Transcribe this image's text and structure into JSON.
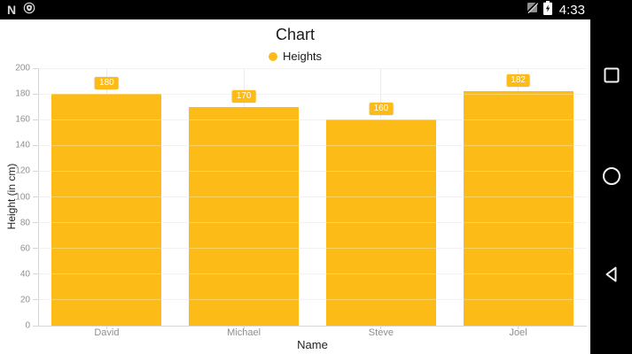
{
  "status_bar": {
    "time": "4:33",
    "left_icons": [
      "android-n-logo",
      "shield-badge"
    ],
    "right_icons": [
      "no-signal",
      "battery-charging"
    ]
  },
  "chart_data": {
    "type": "bar",
    "title": "Chart",
    "categories": [
      "David",
      "Michael",
      "Steve",
      "Joel"
    ],
    "series": [
      {
        "name": "Heights",
        "color": "#fcbb16",
        "values": [
          180,
          170,
          160,
          182
        ]
      }
    ],
    "value_labels": [
      180,
      170,
      160,
      182
    ],
    "xlabel": "Name",
    "ylabel": "Height (in cm)",
    "ylim": [
      0,
      200
    ],
    "ytick_step": 20,
    "yticks": [
      0,
      20,
      40,
      60,
      80,
      100,
      120,
      140,
      160,
      180,
      200
    ],
    "grid": true,
    "legend_position": "top-center"
  },
  "nav_bar": {
    "buttons": [
      {
        "name": "recents",
        "icon": "square-outline"
      },
      {
        "name": "home",
        "icon": "circle-outline"
      },
      {
        "name": "back",
        "icon": "triangle-left-outline"
      }
    ]
  },
  "colors": {
    "bar": "#fcbb16",
    "chrome_bg": "#000000",
    "content_bg": "#ffffff",
    "gridline": "#ececec",
    "axis_line": "#d6d6d6",
    "tick_label": "#8f8f8f",
    "text_primary": "#1b1b1b",
    "badge_text": "#ffffff"
  }
}
